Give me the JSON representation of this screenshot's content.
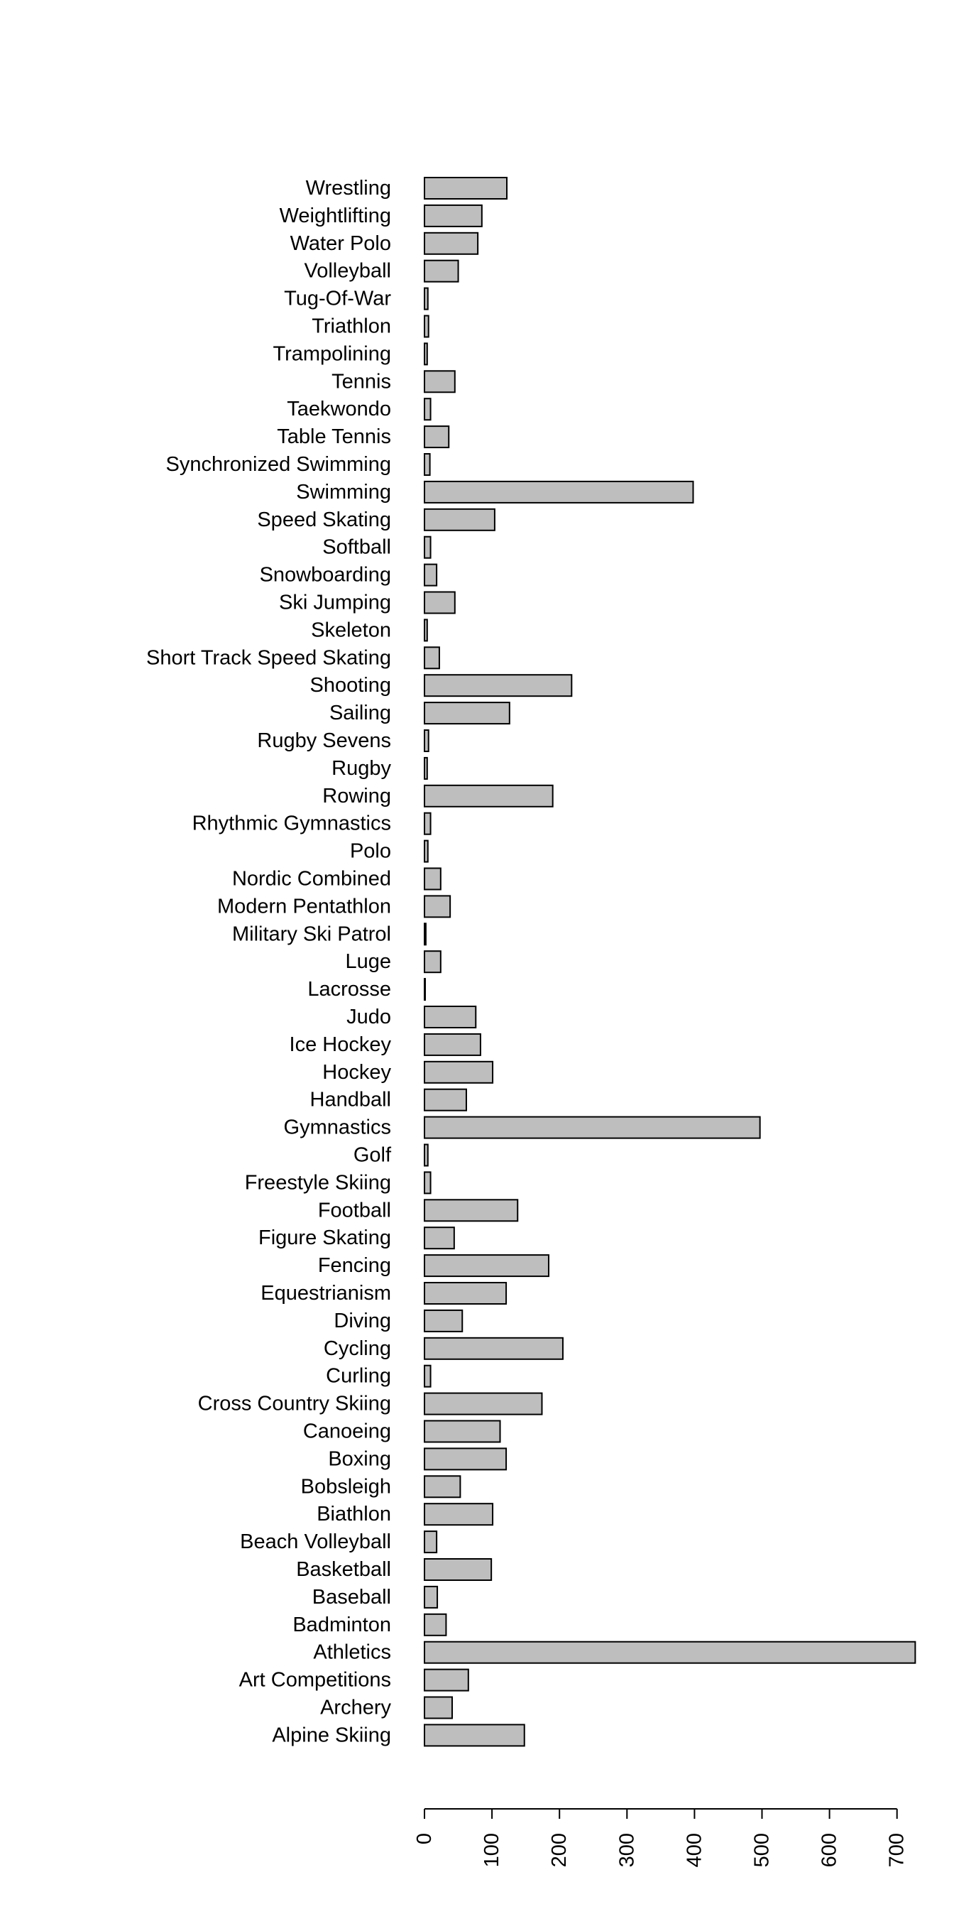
{
  "chart_data": {
    "type": "bar",
    "orientation": "horizontal",
    "title": "",
    "xlabel": "",
    "ylabel": "",
    "xlim": [
      0,
      700
    ],
    "x_ticks": [
      "0",
      "100",
      "200",
      "300",
      "400",
      "500",
      "600",
      "700"
    ],
    "grid": false,
    "legend": "none",
    "bar_color": "#bebebe",
    "categories": [
      "Alpine Skiing",
      "Archery",
      "Art Competitions",
      "Athletics",
      "Badminton",
      "Baseball",
      "Basketball",
      "Beach Volleyball",
      "Biathlon",
      "Bobsleigh",
      "Boxing",
      "Canoeing",
      "Cross Country Skiing",
      "Curling",
      "Cycling",
      "Diving",
      "Equestrianism",
      "Fencing",
      "Figure Skating",
      "Football",
      "Freestyle Skiing",
      "Golf",
      "Gymnastics",
      "Handball",
      "Hockey",
      "Ice Hockey",
      "Judo",
      "Lacrosse",
      "Luge",
      "Military Ski Patrol",
      "Modern Pentathlon",
      "Nordic Combined",
      "Polo",
      "Rhythmic Gymnastics",
      "Rowing",
      "Rugby",
      "Rugby Sevens",
      "Sailing",
      "Shooting",
      "Short Track Speed Skating",
      "Skeleton",
      "Ski Jumping",
      "Snowboarding",
      "Softball",
      "Speed Skating",
      "Swimming",
      "Synchronized Swimming",
      "Table Tennis",
      "Taekwondo",
      "Tennis",
      "Trampolining",
      "Triathlon",
      "Tug-Of-War",
      "Volleyball",
      "Water Polo",
      "Weightlifting",
      "Wrestling"
    ],
    "values": [
      148,
      41,
      65,
      727,
      32,
      19,
      99,
      18,
      101,
      53,
      121,
      112,
      174,
      9,
      205,
      56,
      121,
      184,
      44,
      138,
      9,
      5,
      497,
      62,
      101,
      83,
      76,
      1,
      24,
      2,
      38,
      24,
      5,
      9,
      190,
      4,
      6,
      126,
      218,
      22,
      4,
      45,
      18,
      9,
      104,
      398,
      8,
      36,
      9,
      45,
      4,
      6,
      5,
      50,
      79,
      85,
      122
    ]
  }
}
